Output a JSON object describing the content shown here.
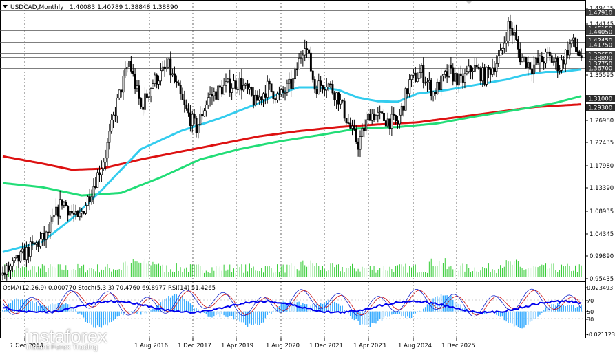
{
  "header": {
    "symbol": "USDCAD,Monthly",
    "ohlc": "1.40083 1.40789 1.38848 1.38890"
  },
  "osma_header": "OsMA(12,26,9) 0.000770 Stoch(5,3,3) 70.4760 69.8977 RSI(14) 51.4265",
  "price_axis_ticks": [
    "1.49435",
    "1.44145",
    "1.41450",
    "1.39650",
    "1.35595",
    "1.31010",
    "1.26980",
    "1.22435",
    "1.17980",
    "1.13390",
    "1.08935",
    "1.04345",
    "0.99890",
    "0.95435"
  ],
  "price_tags": [
    {
      "label": "1.47910",
      "price": 1.4791,
      "color": "#3b3b3b"
    },
    {
      "label": "1.45150",
      "price": 1.4515,
      "color": "#3b3b3b"
    },
    {
      "label": "1.44050",
      "price": 1.4405,
      "color": "#3b3b3b"
    },
    {
      "label": "1.42450",
      "price": 1.4245,
      "color": "#3b3b3b"
    },
    {
      "label": "1.41750",
      "price": 1.4175,
      "color": "#3b3b3b"
    },
    {
      "label": "1.39650",
      "price": 1.3965,
      "color": "#3b3b3b"
    },
    {
      "label": "1.38890",
      "price": 1.3889,
      "color": "#3b3b3b"
    },
    {
      "label": "1.37750",
      "price": 1.3775,
      "color": "#3b3b3b"
    },
    {
      "label": "1.36700",
      "price": 1.367,
      "color": "#3b3b3b"
    },
    {
      "label": "1.31000",
      "price": 1.31,
      "color": "#2b2b2b"
    },
    {
      "label": "1.29300",
      "price": 1.293,
      "color": "#2b2b2b"
    }
  ],
  "osc_axis_ticks": [
    "0.023493",
    "70",
    "50",
    "30",
    "-0.021123"
  ],
  "time_axis_labels": [
    "1 Dec 2014",
    "1 Aug 2016",
    "1 Dec 2017",
    "1 Apr 2019",
    "1 Aug 2020",
    "1 Dec 2021",
    "1 Apr 2023",
    "1 Aug 2024",
    "1 Dec 2025"
  ],
  "watermark": {
    "brand": "instaforex",
    "tagline": "Instant Forex Trading"
  },
  "colors": {
    "ema_fast": "#33ccee",
    "ema_mid": "#22dd77",
    "ema_slow": "#dd1111",
    "candles": "#000000",
    "volume": "#33cc33",
    "osma_hist": "#33aaff",
    "stoch_main": "#1122cc",
    "stoch_signal": "#cc1111",
    "rsi": "#0000ee"
  },
  "chart_data": {
    "type": "candlestick",
    "symbol": "USDCAD",
    "timeframe": "Monthly",
    "ylim": [
      0.95435,
      1.49435
    ],
    "ema_fast_anchor": [
      [
        0,
        1.01
      ],
      [
        20,
        1.03
      ],
      [
        35,
        1.075
      ],
      [
        50,
        1.13
      ],
      [
        70,
        1.21
      ],
      [
        90,
        1.245
      ],
      [
        110,
        1.27
      ],
      [
        130,
        1.3
      ],
      [
        140,
        1.318
      ],
      [
        150,
        1.33
      ],
      [
        160,
        1.33
      ],
      [
        170,
        1.325
      ],
      [
        180,
        1.31
      ],
      [
        190,
        1.303
      ],
      [
        200,
        1.302
      ],
      [
        210,
        1.318
      ],
      [
        225,
        1.325
      ],
      [
        240,
        1.335
      ],
      [
        255,
        1.345
      ],
      [
        265,
        1.355
      ],
      [
        275,
        1.36
      ],
      [
        283,
        1.36
      ],
      [
        293,
        1.365
      ]
    ],
    "ema_mid_anchor": [
      [
        0,
        1.144
      ],
      [
        20,
        1.136
      ],
      [
        40,
        1.12
      ],
      [
        60,
        1.125
      ],
      [
        80,
        1.155
      ],
      [
        100,
        1.19
      ],
      [
        120,
        1.21
      ],
      [
        140,
        1.225
      ],
      [
        160,
        1.237
      ],
      [
        180,
        1.25
      ],
      [
        200,
        1.253
      ],
      [
        220,
        1.26
      ],
      [
        240,
        1.274
      ],
      [
        260,
        1.286
      ],
      [
        280,
        1.3
      ],
      [
        293,
        1.313
      ]
    ],
    "ema_slow_anchor": [
      [
        0,
        1.196
      ],
      [
        20,
        1.182
      ],
      [
        35,
        1.17
      ],
      [
        50,
        1.172
      ],
      [
        70,
        1.19
      ],
      [
        90,
        1.205
      ],
      [
        110,
        1.22
      ],
      [
        130,
        1.235
      ],
      [
        150,
        1.245
      ],
      [
        170,
        1.253
      ],
      [
        190,
        1.258
      ],
      [
        210,
        1.262
      ],
      [
        230,
        1.272
      ],
      [
        250,
        1.282
      ],
      [
        270,
        1.292
      ],
      [
        293,
        1.297
      ]
    ],
    "close_anchor": [
      [
        0,
        0.965
      ],
      [
        12,
        1.01
      ],
      [
        22,
        1.04
      ],
      [
        30,
        1.11
      ],
      [
        38,
        1.07
      ],
      [
        46,
        1.14
      ],
      [
        52,
        1.2
      ],
      [
        56,
        1.27
      ],
      [
        60,
        1.33
      ],
      [
        64,
        1.38
      ],
      [
        70,
        1.29
      ],
      [
        76,
        1.34
      ],
      [
        84,
        1.37
      ],
      [
        92,
        1.29
      ],
      [
        98,
        1.25
      ],
      [
        104,
        1.31
      ],
      [
        112,
        1.33
      ],
      [
        120,
        1.34
      ],
      [
        128,
        1.3
      ],
      [
        134,
        1.33
      ],
      [
        140,
        1.31
      ],
      [
        147,
        1.34
      ],
      [
        153,
        1.42
      ],
      [
        158,
        1.33
      ],
      [
        164,
        1.34
      ],
      [
        170,
        1.31
      ],
      [
        176,
        1.25
      ],
      [
        180,
        1.22
      ],
      [
        186,
        1.28
      ],
      [
        192,
        1.27
      ],
      [
        200,
        1.26
      ],
      [
        206,
        1.34
      ],
      [
        212,
        1.36
      ],
      [
        218,
        1.32
      ],
      [
        226,
        1.36
      ],
      [
        232,
        1.34
      ],
      [
        238,
        1.37
      ],
      [
        244,
        1.35
      ],
      [
        252,
        1.39
      ],
      [
        256,
        1.45
      ],
      [
        259,
        1.43
      ],
      [
        262,
        1.39
      ],
      [
        268,
        1.37
      ],
      [
        276,
        1.39
      ],
      [
        282,
        1.37
      ],
      [
        288,
        1.42
      ],
      [
        293,
        1.389
      ]
    ],
    "osc_range": [
      -0.021123,
      0.023493
    ]
  }
}
